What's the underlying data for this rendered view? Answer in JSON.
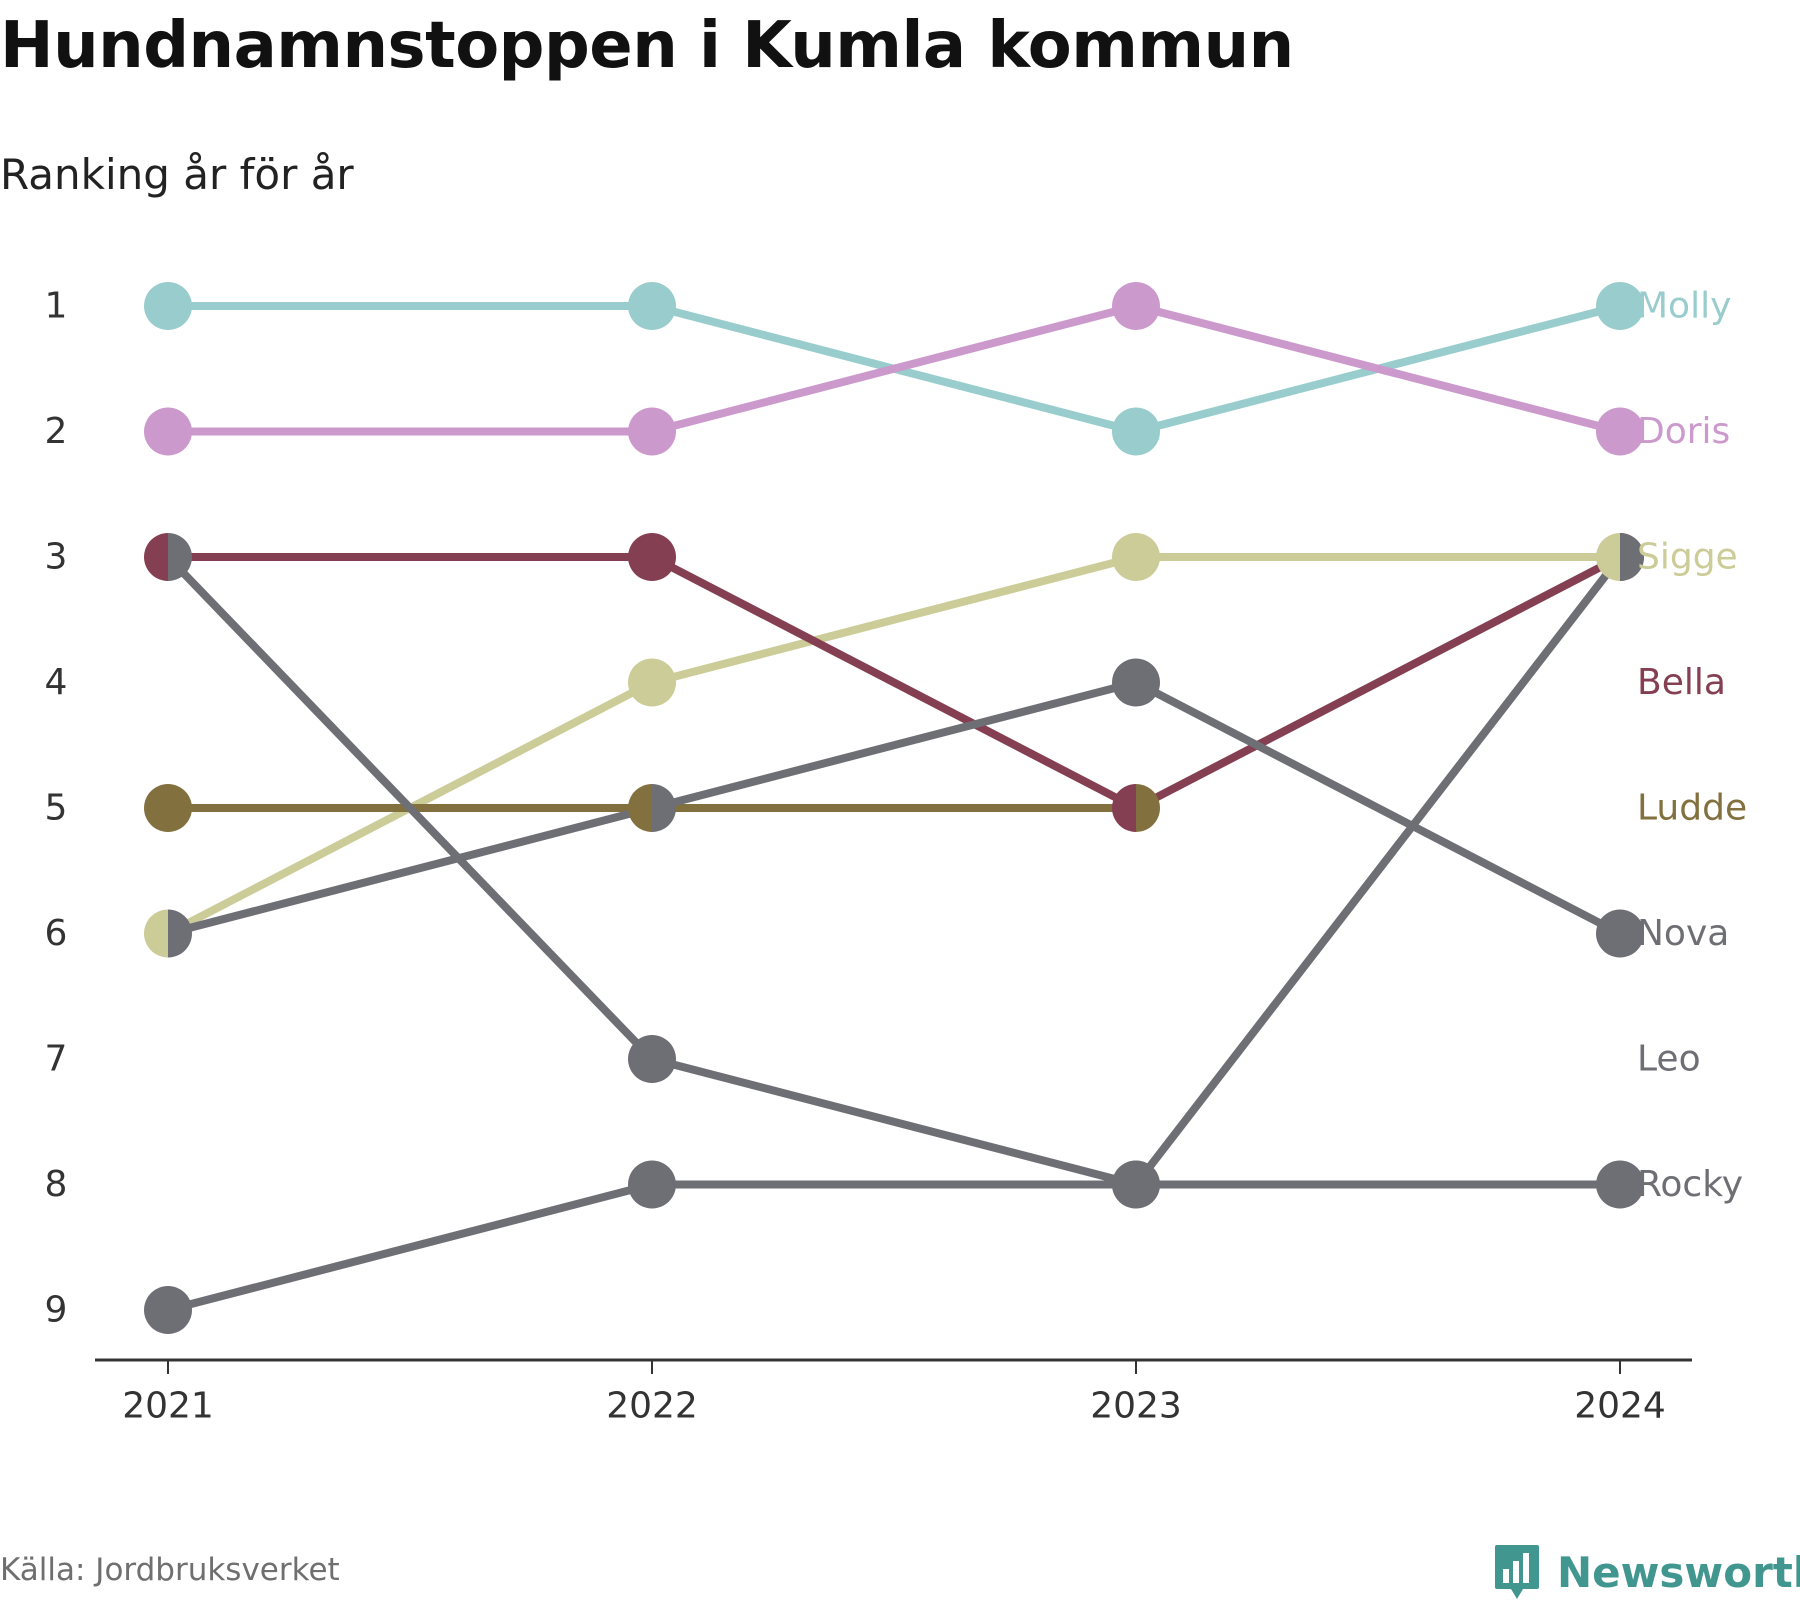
{
  "title": "Hundnamnstoppen i Kumla kommun",
  "subtitle": "Ranking år för år",
  "source": "Källa: Jordbruksverket",
  "brand": {
    "name": "Newsworthy",
    "icon": "chart-bubble-icon",
    "color": "#41978f"
  },
  "chart_data": {
    "type": "line",
    "x": [
      "2021",
      "2022",
      "2023",
      "2024"
    ],
    "y_ticks": [
      "1",
      "2",
      "3",
      "4",
      "5",
      "6",
      "7",
      "8",
      "9"
    ],
    "ylim": [
      1,
      9
    ],
    "y_reversed": true,
    "grid": false,
    "legend": "right end labels",
    "series": [
      {
        "name": "Molly",
        "color": "#99cccc",
        "values": [
          1,
          1,
          2,
          1
        ]
      },
      {
        "name": "Doris",
        "color": "#cc99cc",
        "values": [
          2,
          2,
          1,
          2
        ]
      },
      {
        "name": "Sigge",
        "color": "#cccc99",
        "values": [
          6,
          4,
          3,
          3
        ]
      },
      {
        "name": "Bella",
        "color": "#853f52",
        "values": [
          3,
          3,
          5,
          3
        ]
      },
      {
        "name": "Ludde",
        "color": "#82703f",
        "values": [
          5,
          5,
          5,
          null
        ]
      },
      {
        "name": "Nova",
        "color": "#6e6e75",
        "values": [
          6,
          5,
          4,
          6
        ]
      },
      {
        "name": "Leo",
        "color": "#6e6e75",
        "values": [
          3,
          7,
          8,
          3
        ]
      },
      {
        "name": "Rocky",
        "color": "#6e6e75",
        "values": [
          9,
          8,
          8,
          8
        ]
      }
    ],
    "end_label_positions": [
      1,
      2,
      3,
      4,
      5,
      6,
      7,
      8
    ]
  }
}
